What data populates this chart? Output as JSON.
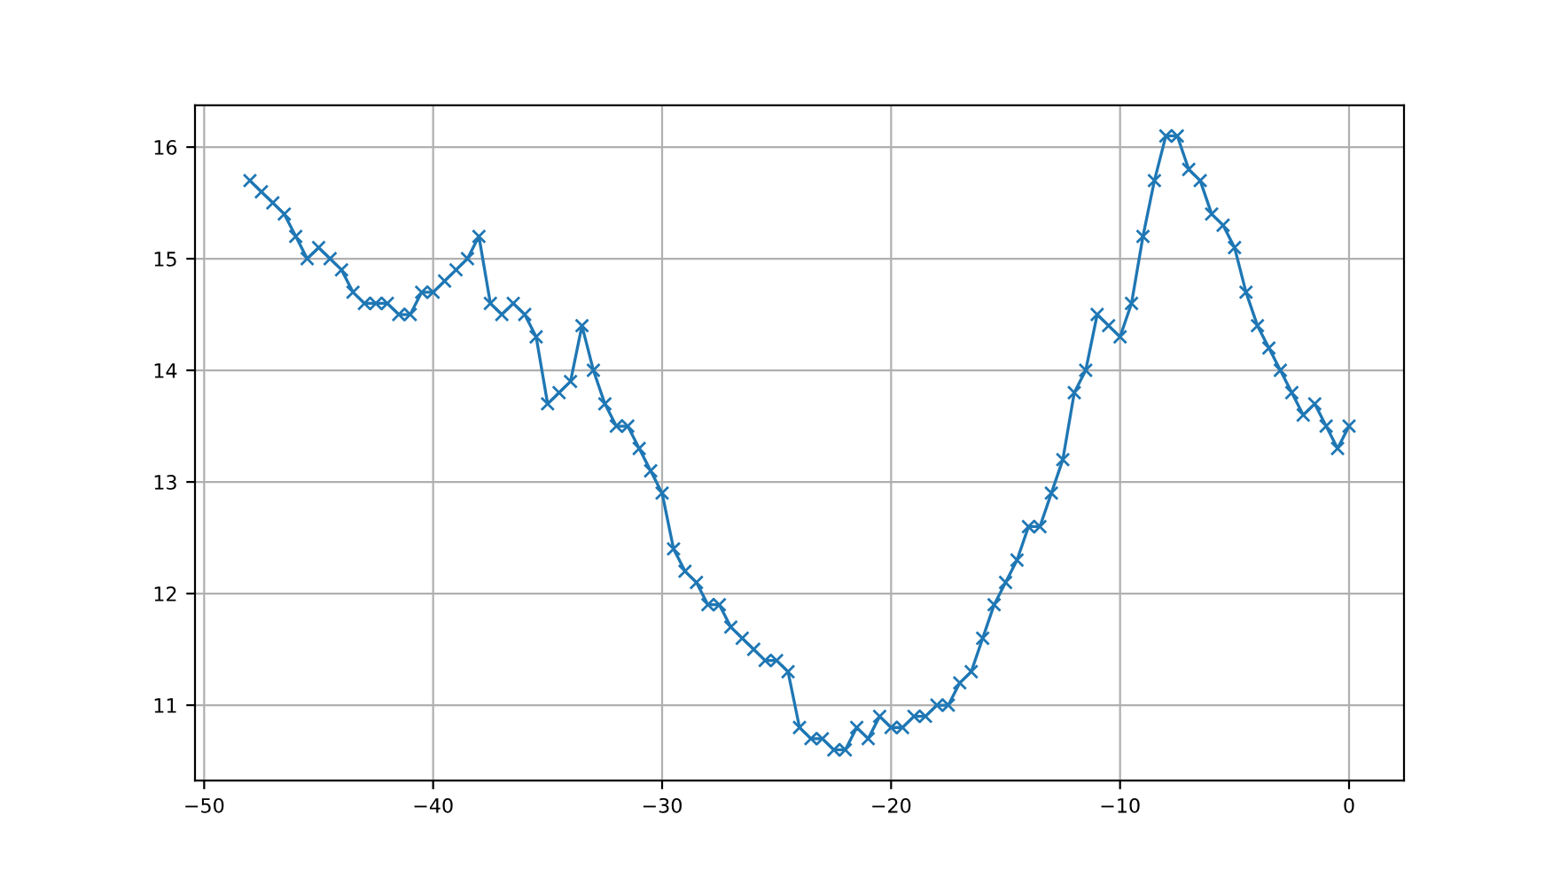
{
  "chart_data": {
    "type": "line",
    "x": [
      -48,
      -47.5,
      -47,
      -46.5,
      -46,
      -45.5,
      -45,
      -44.5,
      -44,
      -43.5,
      -43,
      -42.5,
      -42,
      -41.5,
      -41,
      -40.5,
      -40,
      -39.5,
      -39,
      -38.5,
      -38,
      -37.5,
      -37,
      -36.5,
      -36,
      -35.5,
      -35,
      -34.5,
      -34,
      -33.5,
      -33,
      -32.5,
      -32,
      -31.5,
      -31,
      -30.5,
      -30,
      -29.5,
      -29,
      -28.5,
      -28,
      -27.5,
      -27,
      -26.5,
      -26,
      -25.5,
      -25,
      -24.5,
      -24,
      -23.5,
      -23,
      -22.5,
      -22,
      -21.5,
      -21,
      -20.5,
      -20,
      -19.5,
      -19,
      -18.5,
      -18,
      -17.5,
      -17,
      -16.5,
      -16,
      -15.5,
      -15,
      -14.5,
      -14,
      -13.5,
      -13,
      -12.5,
      -12,
      -11.5,
      -11,
      -10.5,
      -10,
      -9.5,
      -9,
      -8.5,
      -8,
      -7.5,
      -7,
      -6.5,
      -6,
      -5.5,
      -5,
      -4.5,
      -4,
      -3.5,
      -3,
      -2.5,
      -2,
      -1.5,
      -1,
      -0.5,
      0
    ],
    "series": [
      {
        "color": "#1f77b4",
        "values": [
          15.7,
          15.6,
          15.5,
          15.4,
          15.2,
          15.0,
          15.1,
          15.0,
          14.9,
          14.7,
          14.6,
          14.6,
          14.6,
          14.5,
          14.5,
          14.7,
          14.7,
          14.8,
          14.9,
          15.0,
          15.2,
          14.6,
          14.5,
          14.6,
          14.5,
          14.3,
          13.7,
          13.8,
          13.9,
          14.4,
          14.0,
          13.7,
          13.5,
          13.5,
          13.3,
          13.1,
          12.9,
          12.4,
          12.2,
          12.1,
          11.9,
          11.9,
          11.7,
          11.6,
          11.5,
          11.4,
          11.4,
          11.3,
          10.8,
          10.7,
          10.7,
          10.6,
          10.6,
          10.8,
          10.7,
          10.9,
          10.8,
          10.8,
          10.9,
          10.9,
          11.0,
          11.0,
          11.2,
          11.3,
          11.6,
          11.9,
          12.1,
          12.3,
          12.6,
          12.6,
          12.9,
          13.2,
          13.8,
          14.0,
          14.5,
          14.4,
          14.3,
          14.6,
          15.2,
          15.7,
          16.1,
          16.1,
          15.8,
          15.7,
          15.4,
          15.3,
          15.1,
          14.7,
          14.4,
          14.2,
          14.0,
          13.8,
          13.6,
          13.7,
          13.5,
          13.3,
          13.5
        ]
      }
    ],
    "xlim": [
      -50.4,
      2.4
    ],
    "ylim": [
      10.325,
      16.375
    ],
    "xticks": [
      {
        "value": -50,
        "label": "−50"
      },
      {
        "value": -40,
        "label": "−40"
      },
      {
        "value": -30,
        "label": "−30"
      },
      {
        "value": -20,
        "label": "−20"
      },
      {
        "value": -10,
        "label": "−10"
      },
      0
    ],
    "yticks": [
      11,
      12,
      13,
      14,
      15,
      16
    ],
    "grid": true,
    "marker": "cross",
    "line_style": "solid"
  }
}
